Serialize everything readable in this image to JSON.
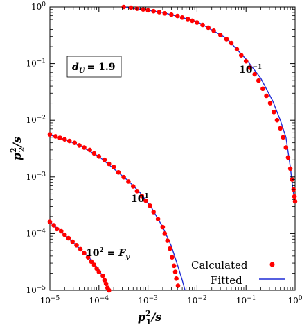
{
  "chart_data": {
    "type": "line",
    "scale": {
      "x": "log",
      "y": "log"
    },
    "xlim": [
      1e-05,
      1
    ],
    "ylim": [
      1e-05,
      1
    ],
    "x_ticks": [
      {
        "value": 1e-05,
        "base": "10",
        "exp": "−5"
      },
      {
        "value": 0.0001,
        "base": "10",
        "exp": "−4"
      },
      {
        "value": 0.001,
        "base": "10",
        "exp": "−3"
      },
      {
        "value": 0.01,
        "base": "10",
        "exp": "−2"
      },
      {
        "value": 0.1,
        "base": "10",
        "exp": "−1"
      },
      {
        "value": 1,
        "base": "10",
        "exp": "0"
      }
    ],
    "y_ticks": [
      {
        "value": 1e-05,
        "base": "10",
        "exp": "−5"
      },
      {
        "value": 0.0001,
        "base": "10",
        "exp": "−4"
      },
      {
        "value": 0.001,
        "base": "10",
        "exp": "−3"
      },
      {
        "value": 0.01,
        "base": "10",
        "exp": "−2"
      },
      {
        "value": 0.1,
        "base": "10",
        "exp": "−1"
      },
      {
        "value": 1,
        "base": "10",
        "exp": "0"
      }
    ],
    "xlabel": {
      "base": "p",
      "sup": "2",
      "sub": "1",
      "tail": "/s"
    },
    "ylabel": {
      "base": "p",
      "sup": "2",
      "sub": "2",
      "tail": "/s"
    },
    "param_box": {
      "lhs": "d",
      "sub": "U",
      "rhs": "= 1.9"
    },
    "annotations": [
      {
        "text_base": "10",
        "text_sup": "−1",
        "text_tail": "",
        "x": 0.11,
        "y": 0.08
      },
      {
        "text_base": "10",
        "text_sup": "1",
        "text_tail": "",
        "x": 0.00032,
        "y": 0.00058
      },
      {
        "text_base": "10",
        "text_sup": "2",
        "text_tail": " = F",
        "text_sub": "y",
        "x": 1.4e-05,
        "y": 5.2e-05
      }
    ],
    "legend": {
      "position": "bottom-right",
      "entries": [
        {
          "label": "Calculated",
          "marker": "dot",
          "color": "#ff0000"
        },
        {
          "label": "Fitted",
          "marker": "line",
          "color": "#0000ff"
        }
      ]
    },
    "curves": [
      {
        "y_end": 1e-05,
        "points": [
          [
            0.00032,
            1.0
          ],
          [
            0.002,
            0.8
          ],
          [
            0.01,
            0.55
          ],
          [
            0.04,
            0.28
          ],
          [
            0.1,
            0.12
          ],
          [
            0.2,
            0.055
          ],
          [
            0.35,
            0.022
          ],
          [
            0.5,
            0.01
          ],
          [
            0.65,
            0.005
          ],
          [
            0.8,
            0.0015
          ],
          [
            0.9,
            0.0006
          ],
          [
            1.0,
            0.00037
          ]
        ]
      },
      {
        "y_end": 1e-05,
        "points": [
          [
            1e-05,
            0.0055
          ],
          [
            2e-05,
            0.0046
          ],
          [
            4e-05,
            0.0036
          ],
          [
            0.0001,
            0.0023
          ],
          [
            0.0002,
            0.0014
          ],
          [
            0.0004,
            0.00085
          ],
          [
            0.0007,
            0.00052
          ],
          [
            0.0012,
            0.00028
          ],
          [
            0.002,
            0.00013
          ],
          [
            0.003,
            6e-05
          ],
          [
            0.004,
            2.8e-05
          ],
          [
            0.005,
            1.5e-05
          ],
          [
            0.0057,
            1e-05
          ]
        ]
      },
      {
        "y_end": 1e-05,
        "points": [
          [
            1e-05,
            0.00016
          ],
          [
            2e-05,
            9.5e-05
          ],
          [
            4e-05,
            5.5e-05
          ],
          [
            7e-05,
            3.4e-05
          ],
          [
            0.0001,
            2.3e-05
          ],
          [
            0.00013,
            1.5e-05
          ],
          [
            0.00016,
            1e-05
          ]
        ]
      }
    ],
    "calculated_points": [
      [
        0.00032,
        1.0
      ],
      [
        0.00045,
        0.97
      ],
      [
        0.0006,
        0.93
      ],
      [
        0.0008,
        0.9
      ],
      [
        0.001,
        0.87
      ],
      [
        0.0013,
        0.84
      ],
      [
        0.0017,
        0.81
      ],
      [
        0.0022,
        0.77
      ],
      [
        0.003,
        0.73
      ],
      [
        0.004,
        0.69
      ],
      [
        0.005,
        0.65
      ],
      [
        0.0065,
        0.61
      ],
      [
        0.008,
        0.57
      ],
      [
        0.01,
        0.53
      ],
      [
        0.013,
        0.48
      ],
      [
        0.017,
        0.43
      ],
      [
        0.022,
        0.38
      ],
      [
        0.03,
        0.32
      ],
      [
        0.04,
        0.27
      ],
      [
        0.05,
        0.23
      ],
      [
        0.065,
        0.18
      ],
      [
        0.08,
        0.14
      ],
      [
        0.1,
        0.11
      ],
      [
        0.12,
        0.085
      ],
      [
        0.15,
        0.065
      ],
      [
        0.18,
        0.05
      ],
      [
        0.22,
        0.036
      ],
      [
        0.26,
        0.027
      ],
      [
        0.31,
        0.02
      ],
      [
        0.37,
        0.014
      ],
      [
        0.43,
        0.01
      ],
      [
        0.5,
        0.0072
      ],
      [
        0.57,
        0.005
      ],
      [
        0.65,
        0.0033
      ],
      [
        0.72,
        0.0022
      ],
      [
        0.8,
        0.0014
      ],
      [
        0.87,
        0.0009
      ],
      [
        0.93,
        0.0006
      ],
      [
        0.97,
        0.00045
      ],
      [
        1.0,
        0.00037
      ],
      [
        1e-05,
        0.0056
      ],
      [
        1.3e-05,
        0.0052
      ],
      [
        1.6e-05,
        0.0049
      ],
      [
        2e-05,
        0.0046
      ],
      [
        2.5e-05,
        0.0043
      ],
      [
        3.2e-05,
        0.004
      ],
      [
        4e-05,
        0.0036
      ],
      [
        5e-05,
        0.0033
      ],
      [
        6.5e-05,
        0.003
      ],
      [
        8e-05,
        0.0026
      ],
      [
        0.0001,
        0.0023
      ],
      [
        0.00013,
        0.002
      ],
      [
        0.00016,
        0.0017
      ],
      [
        0.0002,
        0.0015
      ],
      [
        0.00025,
        0.0012
      ],
      [
        0.00032,
        0.00099
      ],
      [
        0.0004,
        0.00083
      ],
      [
        0.0005,
        0.00068
      ],
      [
        0.0006,
        0.00056
      ],
      [
        0.00075,
        0.00046
      ],
      [
        0.0009,
        0.00038
      ],
      [
        0.0011,
        0.00031
      ],
      [
        0.0013,
        0.00024
      ],
      [
        0.0016,
        0.00018
      ],
      [
        0.002,
        0.00013
      ],
      [
        0.0022,
        0.0001
      ],
      [
        0.0025,
        7.5e-05
      ],
      [
        0.0028,
        5.4e-05
      ],
      [
        0.0031,
        3.8e-05
      ],
      [
        0.0034,
        2.7e-05
      ],
      [
        0.0036,
        2.1e-05
      ],
      [
        0.0038,
        1.6e-05
      ],
      [
        0.0041,
        1.2e-05
      ],
      [
        1e-05,
        0.00016
      ],
      [
        1.2e-05,
        0.00014
      ],
      [
        1.4e-05,
        0.00012
      ],
      [
        1.7e-05,
        0.00011
      ],
      [
        2e-05,
        9.5e-05
      ],
      [
        2.4e-05,
        8.3e-05
      ],
      [
        2.9e-05,
        7.2e-05
      ],
      [
        3.5e-05,
        6.2e-05
      ],
      [
        4.2e-05,
        5.3e-05
      ],
      [
        5e-05,
        4.5e-05
      ],
      [
        6e-05,
        3.8e-05
      ],
      [
        7e-05,
        3.2e-05
      ],
      [
        8e-05,
        2.8e-05
      ],
      [
        9e-05,
        2.4e-05
      ],
      [
        0.0001,
        2.1e-05
      ],
      [
        0.00012,
        1.8e-05
      ],
      [
        0.00013,
        1.5e-05
      ],
      [
        0.00014,
        1.3e-05
      ],
      [
        0.00015,
        1.1e-05
      ],
      [
        0.00016,
        1e-05
      ]
    ],
    "colors": {
      "calculated": "#ff0000",
      "fitted": "#1f2bd6",
      "axis": "#000000"
    }
  }
}
